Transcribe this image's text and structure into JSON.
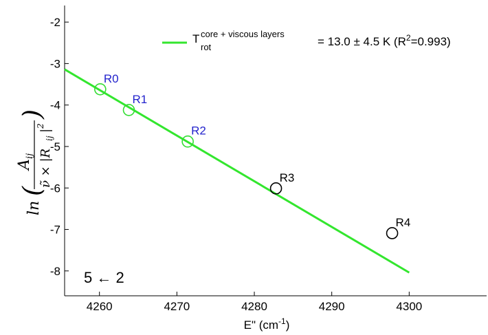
{
  "chart_data": {
    "type": "scatter",
    "xlabel": {
      "main": "E\" (cm",
      "sup": "-1",
      "end": ")"
    },
    "ylabel": "ln(A_ij / (ν̃ × |R_ij|^2))",
    "xlim": [
      4255.5,
      4310
    ],
    "ylim": [
      -8.6,
      -1.6
    ],
    "x_ticks": [
      4260,
      4270,
      4280,
      4290,
      4300
    ],
    "y_ticks": [
      -2,
      -3,
      -4,
      -5,
      -6,
      -7,
      -8
    ],
    "points": [
      {
        "label": "R0",
        "x": 4260.1,
        "y": -3.62,
        "color": "#2222cc",
        "marker": "#33dd33"
      },
      {
        "label": "R1",
        "x": 4263.8,
        "y": -4.12,
        "color": "#2222cc",
        "marker": "#33dd33"
      },
      {
        "label": "R2",
        "x": 4271.4,
        "y": -4.88,
        "color": "#2222cc",
        "marker": "#33dd33"
      },
      {
        "label": "R3",
        "x": 4282.8,
        "y": -6.01,
        "color": "#000000",
        "marker": "#000000"
      },
      {
        "label": "R4",
        "x": 4297.8,
        "y": -7.09,
        "color": "#000000",
        "marker": "#000000"
      }
    ],
    "fit_line": {
      "x": [
        4255.5,
        4300
      ],
      "y": [
        -3.14,
        -8.04
      ],
      "color": "#33e62e"
    },
    "legend": {
      "T": "T",
      "superscript": "core + viscous layers",
      "subscript": "rot",
      "value": "=  13.0 ± 4.5 K (R",
      "r2_sup": "2",
      "r2_end": "=0.993)",
      "placement": "top-right"
    },
    "annotation": "5 ← 2",
    "grid": false
  }
}
